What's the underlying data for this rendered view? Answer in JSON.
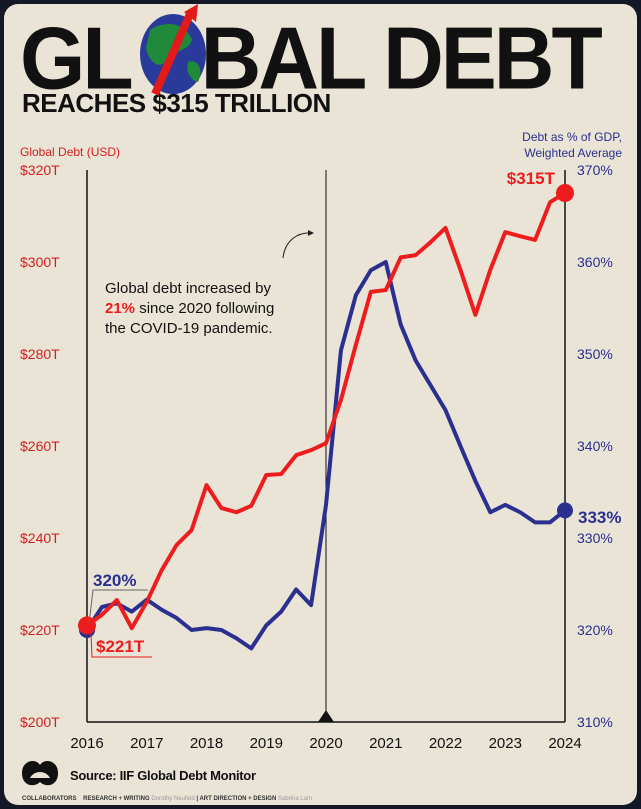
{
  "header": {
    "title_left": "GL",
    "title_right": "BAL DEBT",
    "subtitle": "REACHES $315 TRILLION"
  },
  "icons": {
    "globe": "globe-with-red-arrow-icon",
    "logo": "visual-capitalist-logo-icon"
  },
  "colors": {
    "debt": "#ee1c1c",
    "gdp": "#2b2f8f",
    "background": "#e9e4d5"
  },
  "chart_data": {
    "type": "line",
    "title": "Global Debt Reaches $315 Trillion",
    "left_axis_label": "Global Debt (USD)",
    "right_axis_label_line1": "Debt as % of GDP,",
    "right_axis_label_line2": "Weighted Average",
    "x_ticks": [
      "2016",
      "2017",
      "2018",
      "2019",
      "2020",
      "2021",
      "2022",
      "2023",
      "2024"
    ],
    "xlim": [
      2016,
      2024
    ],
    "left_ylim": [
      200,
      320
    ],
    "right_ylim": [
      310,
      370
    ],
    "left_ticks": [
      "$200T",
      "$220T",
      "$240T",
      "$260T",
      "$280T",
      "$300T",
      "$320T"
    ],
    "right_ticks": [
      "310%",
      "320%",
      "330%",
      "340%",
      "350%",
      "360%",
      "370%"
    ],
    "series": [
      {
        "name": "Global Debt (USD, $T)",
        "axis": "left",
        "values": [
          221,
          223.3,
          226.5,
          220.4,
          226.1,
          233,
          238.5,
          241.7,
          251.5,
          246.5,
          245.6,
          247,
          253.7,
          253.9,
          258,
          259.1,
          260.6,
          270,
          282,
          293.5,
          293.9,
          301,
          301.5,
          304.3,
          307.4,
          298.3,
          288.5,
          298.3,
          306.5,
          305.6,
          304.8,
          313,
          315
        ]
      },
      {
        "name": "Debt as % of GDP",
        "axis": "right",
        "values": [
          320,
          322.5,
          322.9,
          322,
          323.3,
          322.2,
          321.3,
          320,
          320.2,
          320,
          319.1,
          318,
          320.5,
          322,
          324.4,
          322.7,
          333.6,
          350.4,
          356.4,
          359.1,
          360,
          353.2,
          349.3,
          346.6,
          343.9,
          340,
          336.2,
          332.8,
          333.6,
          332.8,
          331.7,
          331.7,
          333
        ]
      }
    ],
    "x_step": 0.25,
    "labels": {
      "debt_start": "$221T",
      "debt_end": "$315T",
      "gdp_start": "320%",
      "gdp_end": "333%"
    },
    "annotation": {
      "line1": "Global debt increased by",
      "highlight": "21%",
      "line2_rest": " since 2020 following",
      "line3": "the COVID-19 pandemic.",
      "marker_year": 2020
    }
  },
  "footer": {
    "source": "Source: IIF Global Debt Monitor",
    "collaborators": "COLLABORATORS",
    "research_label": "RESEARCH + WRITING",
    "research_name": "Dorothy Neufeld",
    "design_label": "ART DIRECTION + DESIGN",
    "design_name": "Sabrina Lam"
  }
}
